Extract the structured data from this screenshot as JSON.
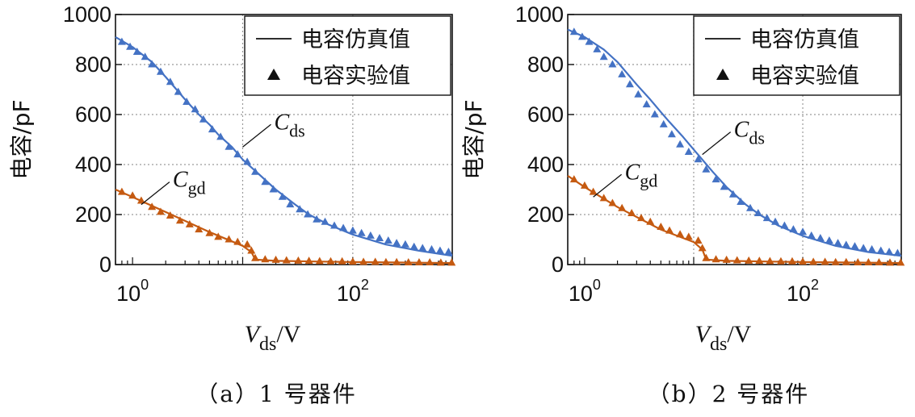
{
  "colors": {
    "sim": "#4472c4",
    "cds_exp": "#4472c4",
    "cgd": "#c55a11",
    "grid": "#9a9a9a",
    "axis": "#111111"
  },
  "chart_data": [
    {
      "type": "line",
      "caption": "（a）1 号器件",
      "ylabel": "电容/pF",
      "xlabel": {
        "main": "V",
        "sub": "ds",
        "unit": "/V"
      },
      "x_scale": "log",
      "xlim": [
        0.7,
        800
      ],
      "ylim": [
        0,
        1000
      ],
      "yticks": [
        0,
        200,
        400,
        600,
        800,
        1000
      ],
      "xticks": [
        {
          "value": 1,
          "base": "10",
          "exp": "0"
        },
        {
          "value": 100,
          "base": "10",
          "exp": "2"
        }
      ],
      "grid": true,
      "legend_position": "top-right",
      "legend": [
        {
          "label": "电容仿真值",
          "marker": "line"
        },
        {
          "label": "电容实验值",
          "marker": "triangle"
        }
      ],
      "series": [
        {
          "name": "电容仿真值",
          "curve": "C_ds",
          "kind": "line",
          "color": "#4472c4",
          "x": [
            0.7,
            1,
            1.5,
            2,
            3,
            4,
            5,
            6,
            8,
            10,
            15,
            20,
            30,
            40,
            60,
            100,
            200,
            400,
            800
          ],
          "y": [
            910,
            870,
            810,
            750,
            660,
            600,
            560,
            520,
            470,
            420,
            350,
            300,
            240,
            200,
            160,
            120,
            80,
            55,
            35
          ]
        },
        {
          "name": "电容实验值",
          "curve": "C_ds",
          "kind": "scatter",
          "color": "#4472c4",
          "x": [
            0.8,
            0.95,
            1.1,
            1.3,
            1.5,
            1.8,
            2.2,
            2.6,
            3.1,
            3.7,
            4.4,
            5.3,
            6.3,
            7.5,
            9,
            11,
            13,
            16,
            19,
            23,
            27,
            33,
            39,
            47,
            56,
            68,
            82,
            100,
            120,
            145,
            175,
            210,
            250,
            300,
            360,
            430,
            520,
            620,
            740
          ],
          "y": [
            890,
            870,
            850,
            830,
            800,
            770,
            730,
            690,
            650,
            620,
            580,
            540,
            510,
            470,
            440,
            410,
            370,
            330,
            300,
            270,
            240,
            220,
            200,
            180,
            170,
            155,
            145,
            135,
            125,
            115,
            105,
            95,
            85,
            80,
            70,
            65,
            60,
            55,
            50
          ]
        },
        {
          "name": "电容仿真值",
          "curve": "C_gd",
          "kind": "line",
          "color": "#c55a11",
          "x": [
            0.7,
            1,
            2,
            5,
            10,
            12,
            13,
            20,
            50,
            100,
            300,
            800
          ],
          "y": [
            300,
            270,
            210,
            130,
            75,
            50,
            20,
            15,
            12,
            10,
            8,
            6
          ]
        },
        {
          "name": "电容实验值",
          "curve": "C_gd",
          "kind": "scatter",
          "color": "#c55a11",
          "x": [
            0.8,
            1,
            1.2,
            1.5,
            1.8,
            2.2,
            2.7,
            3.3,
            4,
            5,
            6,
            7.5,
            9,
            11,
            12,
            13,
            16,
            20,
            25,
            32,
            40,
            50,
            63,
            80,
            100,
            125,
            160,
            200,
            250,
            320,
            400,
            500,
            630,
            790
          ],
          "y": [
            290,
            275,
            255,
            230,
            210,
            195,
            175,
            160,
            140,
            125,
            110,
            100,
            90,
            80,
            55,
            25,
            20,
            18,
            16,
            15,
            14,
            13,
            12,
            12,
            11,
            10,
            10,
            9,
            9,
            8,
            8,
            8,
            7,
            7
          ]
        }
      ],
      "annotations": [
        {
          "label": "C",
          "sub": "ds",
          "target_x": 10,
          "target_y": 470
        },
        {
          "label": "C",
          "sub": "gd",
          "target_x": 1.2,
          "target_y": 240
        }
      ]
    },
    {
      "type": "line",
      "caption": "（b）2 号器件",
      "ylabel": "电容/pF",
      "xlabel": {
        "main": "V",
        "sub": "ds",
        "unit": "/V"
      },
      "x_scale": "log",
      "xlim": [
        0.7,
        800
      ],
      "ylim": [
        0,
        1000
      ],
      "yticks": [
        0,
        200,
        400,
        600,
        800,
        1000
      ],
      "xticks": [
        {
          "value": 1,
          "base": "10",
          "exp": "0"
        },
        {
          "value": 100,
          "base": "10",
          "exp": "2"
        }
      ],
      "grid": true,
      "legend_position": "top-right",
      "legend": [
        {
          "label": "电容仿真值",
          "marker": "line"
        },
        {
          "label": "电容实验值",
          "marker": "triangle"
        }
      ],
      "series": [
        {
          "name": "电容仿真值",
          "curve": "C_ds",
          "kind": "line",
          "color": "#4472c4",
          "x": [
            0.7,
            1,
            1.5,
            2,
            3,
            4,
            5,
            6,
            8,
            10,
            15,
            20,
            30,
            40,
            60,
            100,
            200,
            400,
            800
          ],
          "y": [
            940,
            910,
            860,
            810,
            720,
            660,
            610,
            570,
            510,
            460,
            370,
            310,
            240,
            200,
            155,
            115,
            75,
            50,
            35
          ]
        },
        {
          "name": "电容实验值",
          "curve": "C_ds",
          "kind": "scatter",
          "color": "#4472c4",
          "x": [
            0.8,
            0.95,
            1.1,
            1.3,
            1.5,
            1.8,
            2.2,
            2.6,
            3.1,
            3.7,
            4.4,
            5.3,
            6.3,
            7.5,
            9,
            11,
            13,
            16,
            19,
            23,
            27,
            33,
            39,
            47,
            56,
            68,
            82,
            100,
            120,
            145,
            175,
            210,
            250,
            300,
            360,
            430,
            520,
            620,
            740
          ],
          "y": [
            930,
            910,
            890,
            860,
            830,
            800,
            760,
            720,
            680,
            640,
            600,
            560,
            520,
            480,
            450,
            420,
            380,
            340,
            310,
            280,
            250,
            225,
            205,
            185,
            170,
            155,
            140,
            130,
            115,
            105,
            95,
            85,
            78,
            72,
            65,
            60,
            55,
            50,
            45
          ]
        },
        {
          "name": "电容仿真值",
          "curve": "C_gd",
          "kind": "line",
          "color": "#c55a11",
          "x": [
            0.7,
            1,
            2,
            5,
            10,
            12,
            13,
            20,
            50,
            100,
            300,
            800
          ],
          "y": [
            355,
            310,
            230,
            140,
            90,
            60,
            20,
            15,
            12,
            10,
            8,
            6
          ]
        },
        {
          "name": "电容实验值",
          "curve": "C_gd",
          "kind": "scatter",
          "color": "#c55a11",
          "x": [
            0.8,
            1,
            1.2,
            1.5,
            1.8,
            2.2,
            2.7,
            3.3,
            4,
            5,
            6,
            7.5,
            9,
            11,
            12,
            13,
            16,
            20,
            25,
            32,
            40,
            50,
            63,
            80,
            100,
            125,
            160,
            200,
            250,
            320,
            400,
            500,
            630,
            790
          ],
          "y": [
            340,
            315,
            290,
            265,
            245,
            225,
            205,
            185,
            170,
            150,
            135,
            120,
            110,
            95,
            65,
            25,
            20,
            18,
            16,
            15,
            14,
            13,
            12,
            12,
            11,
            10,
            10,
            9,
            9,
            8,
            8,
            8,
            7,
            7
          ]
        }
      ],
      "annotations": [
        {
          "label": "C",
          "sub": "ds",
          "target_x": 12,
          "target_y": 440
        },
        {
          "label": "C",
          "sub": "gd",
          "target_x": 1.2,
          "target_y": 270
        }
      ]
    }
  ]
}
